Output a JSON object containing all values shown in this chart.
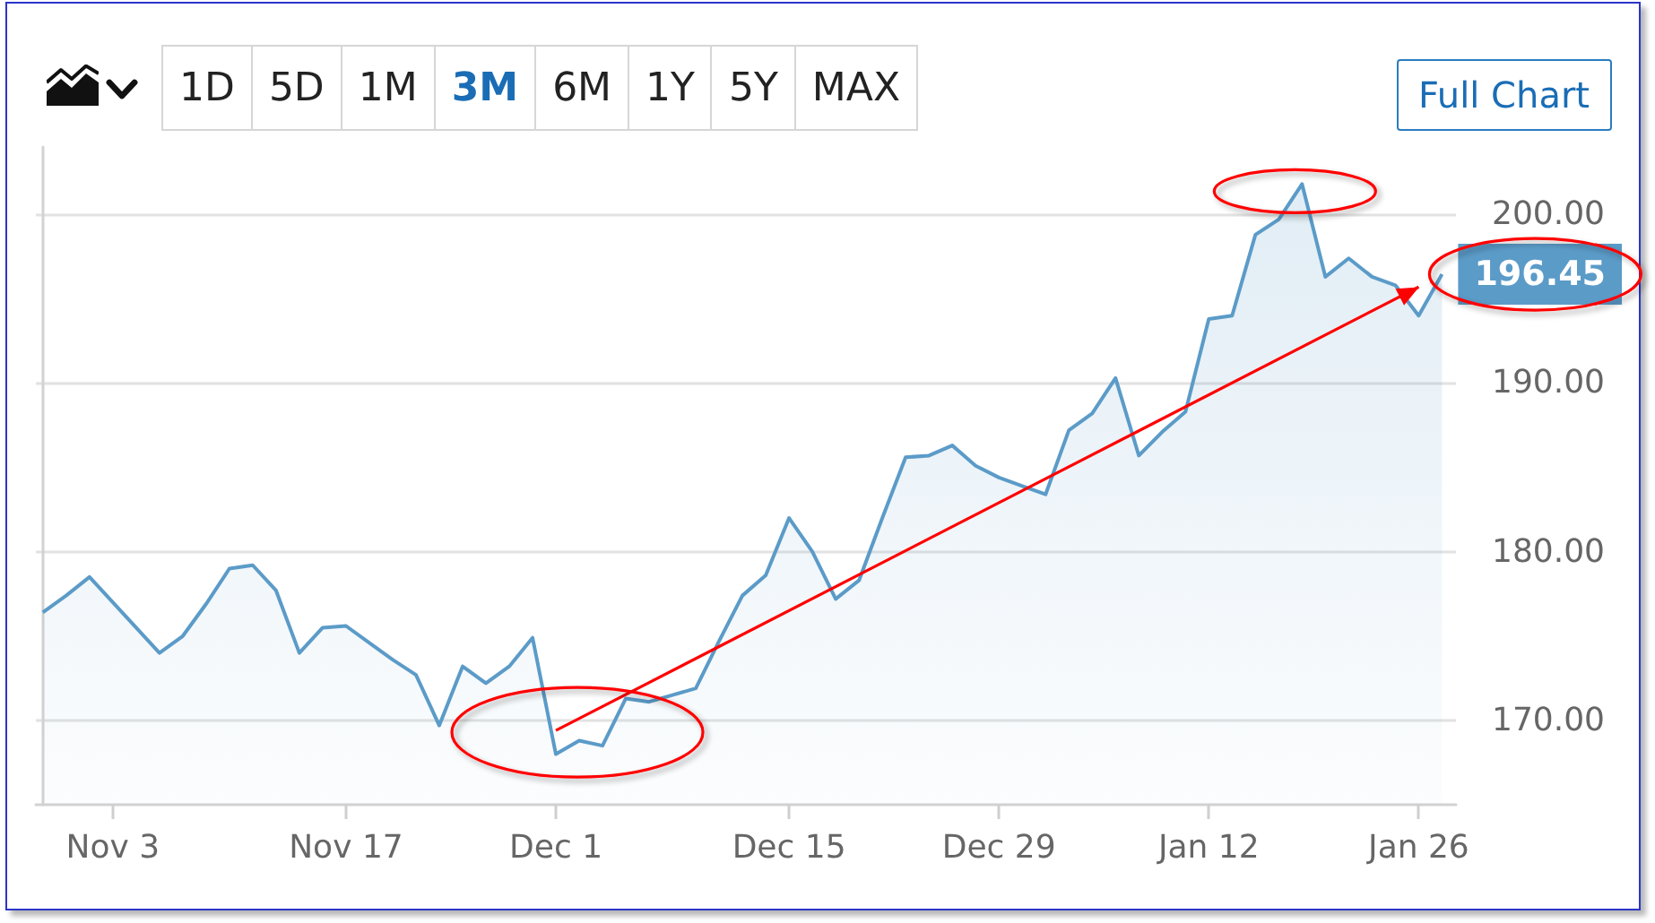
{
  "chart_data": {
    "type": "area",
    "categories": [
      null,
      null,
      null,
      "Nov 3",
      null,
      null,
      null,
      null,
      null,
      null,
      null,
      null,
      null,
      "Nov 17",
      null,
      null,
      null,
      null,
      null,
      null,
      null,
      null,
      "Dec 1",
      null,
      null,
      null,
      null,
      null,
      null,
      null,
      null,
      null,
      "Dec 15",
      null,
      null,
      null,
      null,
      null,
      null,
      null,
      null,
      "Dec 29",
      null,
      null,
      null,
      null,
      null,
      null,
      null,
      null,
      "Jan 12",
      null,
      null,
      null,
      null,
      null,
      null,
      null,
      null,
      "Jan 26",
      null
    ],
    "series": [
      {
        "color": "#5b9bc8",
        "values": [
          176.4,
          177.4,
          178.5,
          177.0,
          175.5,
          174.0,
          175.0,
          176.9,
          179.0,
          179.2,
          177.7,
          174.0,
          175.5,
          175.6,
          174.6,
          173.6,
          172.7,
          169.7,
          173.2,
          172.2,
          173.2,
          174.9,
          168.0,
          168.8,
          168.5,
          171.3,
          171.1,
          171.5,
          171.9,
          174.7,
          177.4,
          178.6,
          182.0,
          180.0,
          177.2,
          178.3,
          182.0,
          185.6,
          185.7,
          186.3,
          185.1,
          184.4,
          183.9,
          183.4,
          187.2,
          188.2,
          190.3,
          185.7,
          187.1,
          188.3,
          193.8,
          194.0,
          198.8,
          199.7,
          201.8,
          196.3,
          197.4,
          196.3,
          195.8,
          194.0,
          196.45
        ],
        "value_labels": [
          null,
          null,
          null,
          null,
          null,
          null,
          null,
          null,
          null,
          null,
          null,
          null,
          null,
          null,
          null,
          null,
          null,
          null,
          null,
          null,
          null,
          null,
          null,
          null,
          null,
          null,
          null,
          null,
          null,
          null,
          null,
          null,
          null,
          null,
          null,
          null,
          null,
          null,
          null,
          null,
          null,
          null,
          null,
          null,
          null,
          null,
          null,
          null,
          null,
          null,
          null,
          null,
          null,
          null,
          null,
          null,
          null,
          null,
          null,
          null,
          "196.45"
        ]
      },
      {
        "type": "line",
        "color": "#ff0000",
        "values": [
          null,
          null,
          null,
          null,
          null,
          null,
          null,
          null,
          null,
          null,
          null,
          null,
          null,
          null,
          null,
          null,
          null,
          null,
          null,
          null,
          null,
          null,
          169.4,
          null,
          null,
          null,
          null,
          null,
          null,
          null,
          null,
          null,
          null,
          null,
          null,
          null,
          null,
          null,
          null,
          null,
          null,
          null,
          null,
          null,
          null,
          null,
          null,
          null,
          null,
          null,
          null,
          null,
          null,
          null,
          null,
          null,
          null,
          null,
          null,
          195.7,
          null
        ]
      }
    ],
    "ylim": [
      165,
      204
    ],
    "yticks": [
      {
        "value": 170,
        "label": "170.00"
      },
      {
        "value": 180,
        "label": "180.00"
      },
      {
        "value": 190,
        "label": "190.00"
      },
      {
        "value": 200,
        "label": "200.00"
      }
    ],
    "grid": "y",
    "marker": "none",
    "annotations": [
      "1D",
      "5D",
      "1M",
      "3M",
      "6M",
      "1Y",
      "5Y",
      "MAX",
      "Full Chart"
    ]
  }
}
